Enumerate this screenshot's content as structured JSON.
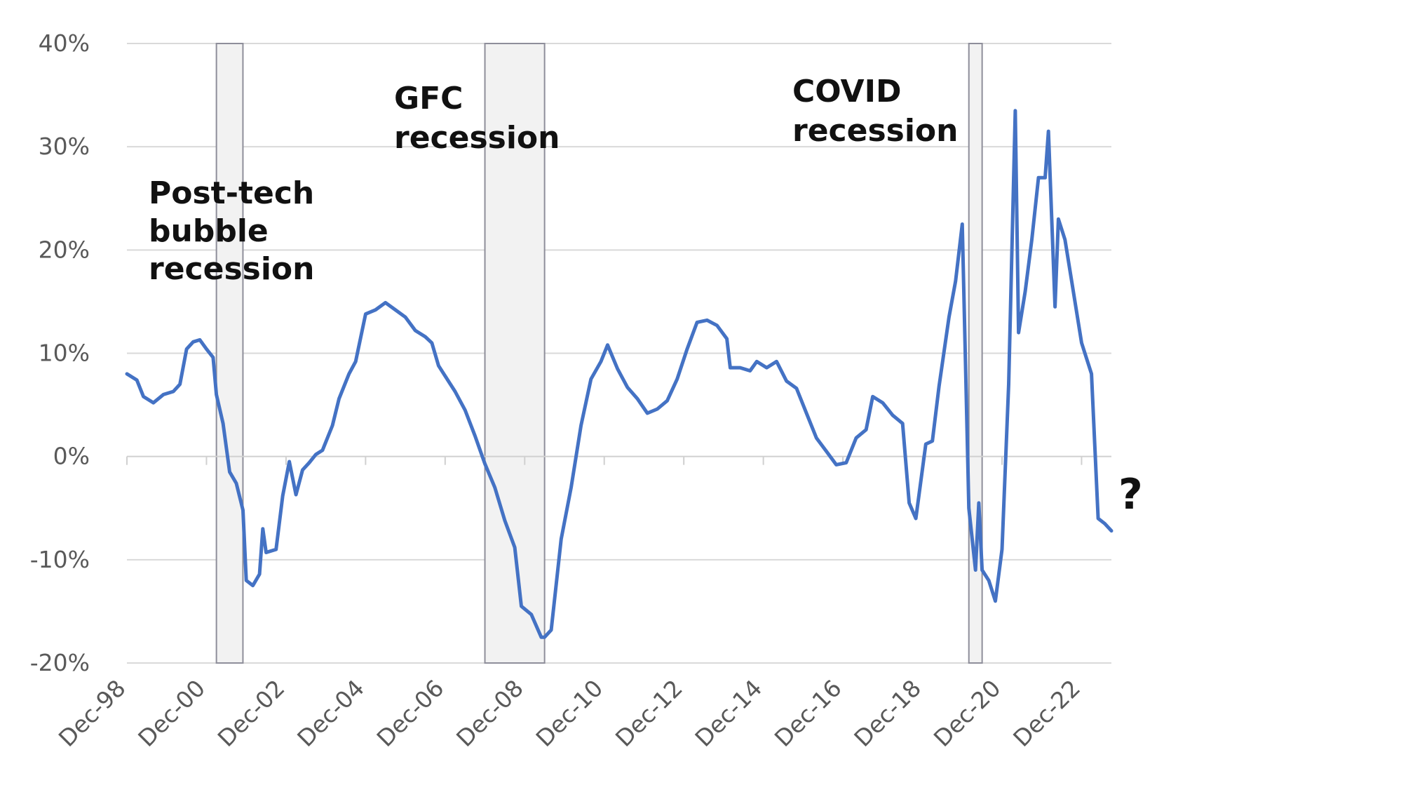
{
  "chart_data": {
    "type": "line",
    "title": "",
    "xlabel": "",
    "ylabel": "",
    "ylim": [
      -20,
      40
    ],
    "y_ticks": [
      40,
      30,
      20,
      10,
      0,
      -10,
      -20
    ],
    "y_tick_labels": [
      "40%",
      "30%",
      "20%",
      "10%",
      "0%",
      "-10%",
      "-20%"
    ],
    "x_range": [
      "1998-12",
      "2023-09"
    ],
    "x_ticks": [
      "1998-12",
      "2000-12",
      "2002-12",
      "2004-12",
      "2006-12",
      "2008-12",
      "2010-12",
      "2012-12",
      "2014-12",
      "2016-12",
      "2018-12",
      "2020-12",
      "2022-12"
    ],
    "x_tick_labels": [
      "Dec-98",
      "Dec-00",
      "Dec-02",
      "Dec-04",
      "Dec-06",
      "Dec-08",
      "Dec-10",
      "Dec-12",
      "Dec-14",
      "Dec-16",
      "Dec-18",
      "Dec-20",
      "Dec-22"
    ],
    "grid": true,
    "legend": "none",
    "line_color": "#4472C4",
    "shade_color": "#F2F2F2",
    "recessions": [
      {
        "start": "2001-03",
        "end": "2001-11",
        "label_lines": [
          "Post-tech",
          "bubble",
          "recession"
        ]
      },
      {
        "start": "2007-12",
        "end": "2009-06",
        "label_lines": [
          "GFC",
          "recession"
        ]
      },
      {
        "start": "2020-02",
        "end": "2020-06",
        "label_lines": [
          "COVID",
          "recession"
        ]
      }
    ],
    "end_annotation": "?",
    "series": [
      {
        "points": [
          [
            "1998-12",
            8.0
          ],
          [
            "1999-03",
            7.4
          ],
          [
            "1999-05",
            5.8
          ],
          [
            "1999-08",
            5.2
          ],
          [
            "1999-11",
            6.0
          ],
          [
            "2000-02",
            6.3
          ],
          [
            "2000-04",
            7.0
          ],
          [
            "2000-06",
            10.4
          ],
          [
            "2000-08",
            11.1
          ],
          [
            "2000-10",
            11.3
          ],
          [
            "2000-12",
            10.4
          ],
          [
            "2001-02",
            9.6
          ],
          [
            "2001-03",
            6.0
          ],
          [
            "2001-05",
            3.2
          ],
          [
            "2001-07",
            -1.5
          ],
          [
            "2001-09",
            -2.6
          ],
          [
            "2001-11",
            -5.2
          ],
          [
            "2001-12",
            -12.0
          ],
          [
            "2002-02",
            -12.5
          ],
          [
            "2002-04",
            -11.4
          ],
          [
            "2002-05",
            -7.0
          ],
          [
            "2002-06",
            -9.3
          ],
          [
            "2002-09",
            -9.0
          ],
          [
            "2002-11",
            -3.8
          ],
          [
            "2003-01",
            -0.5
          ],
          [
            "2003-03",
            -3.7
          ],
          [
            "2003-05",
            -1.3
          ],
          [
            "2003-07",
            -0.6
          ],
          [
            "2003-09",
            0.2
          ],
          [
            "2003-11",
            0.6
          ],
          [
            "2004-02",
            3.0
          ],
          [
            "2004-04",
            5.6
          ],
          [
            "2004-07",
            8.0
          ],
          [
            "2004-09",
            9.2
          ],
          [
            "2004-12",
            13.8
          ],
          [
            "2005-03",
            14.2
          ],
          [
            "2005-06",
            14.9
          ],
          [
            "2005-09",
            14.2
          ],
          [
            "2005-12",
            13.5
          ],
          [
            "2006-03",
            12.2
          ],
          [
            "2006-06",
            11.6
          ],
          [
            "2006-08",
            11.0
          ],
          [
            "2006-10",
            8.8
          ],
          [
            "2006-12",
            7.8
          ],
          [
            "2007-03",
            6.3
          ],
          [
            "2007-06",
            4.5
          ],
          [
            "2007-09",
            2.0
          ],
          [
            "2007-12",
            -0.7
          ],
          [
            "2008-03",
            -3.0
          ],
          [
            "2008-06",
            -6.2
          ],
          [
            "2008-09",
            -8.8
          ],
          [
            "2008-11",
            -14.5
          ],
          [
            "2009-02",
            -15.3
          ],
          [
            "2009-05",
            -17.5
          ],
          [
            "2009-06",
            -17.5
          ],
          [
            "2009-08",
            -16.8
          ],
          [
            "2009-11",
            -8.0
          ],
          [
            "2010-02",
            -3.0
          ],
          [
            "2010-05",
            3.0
          ],
          [
            "2010-08",
            7.5
          ],
          [
            "2010-11",
            9.2
          ],
          [
            "2011-01",
            10.8
          ],
          [
            "2011-04",
            8.5
          ],
          [
            "2011-07",
            6.7
          ],
          [
            "2011-10",
            5.6
          ],
          [
            "2012-01",
            4.2
          ],
          [
            "2012-04",
            4.6
          ],
          [
            "2012-07",
            5.4
          ],
          [
            "2012-10",
            7.5
          ],
          [
            "2013-01",
            10.4
          ],
          [
            "2013-04",
            13.0
          ],
          [
            "2013-07",
            13.2
          ],
          [
            "2013-10",
            12.7
          ],
          [
            "2014-01",
            11.4
          ],
          [
            "2014-02",
            8.6
          ],
          [
            "2014-05",
            8.6
          ],
          [
            "2014-08",
            8.3
          ],
          [
            "2014-10",
            9.2
          ],
          [
            "2015-01",
            8.6
          ],
          [
            "2015-04",
            9.2
          ],
          [
            "2015-07",
            7.3
          ],
          [
            "2015-10",
            6.6
          ],
          [
            "2016-01",
            4.2
          ],
          [
            "2016-04",
            1.8
          ],
          [
            "2016-07",
            0.5
          ],
          [
            "2016-10",
            -0.8
          ],
          [
            "2017-01",
            -0.6
          ],
          [
            "2017-04",
            1.8
          ],
          [
            "2017-07",
            2.6
          ],
          [
            "2017-09",
            5.8
          ],
          [
            "2017-12",
            5.2
          ],
          [
            "2018-03",
            4.0
          ],
          [
            "2018-06",
            3.2
          ],
          [
            "2018-08",
            -4.5
          ],
          [
            "2018-10",
            -6.0
          ],
          [
            "2019-01",
            1.2
          ],
          [
            "2019-03",
            1.5
          ],
          [
            "2019-05",
            6.8
          ],
          [
            "2019-08",
            13.5
          ],
          [
            "2019-10",
            17.0
          ],
          [
            "2019-12",
            22.5
          ],
          [
            "2020-02",
            -5.0
          ],
          [
            "2020-04",
            -11.0
          ],
          [
            "2020-05",
            -4.5
          ],
          [
            "2020-06",
            -11.0
          ],
          [
            "2020-08",
            -12.0
          ],
          [
            "2020-10",
            -14.0
          ],
          [
            "2020-12",
            -9.0
          ],
          [
            "2021-02",
            7.0
          ],
          [
            "2021-04",
            33.5
          ],
          [
            "2021-05",
            12.0
          ],
          [
            "2021-07",
            16.0
          ],
          [
            "2021-09",
            21.0
          ],
          [
            "2021-11",
            27.0
          ],
          [
            "2022-01",
            27.0
          ],
          [
            "2022-02",
            31.5
          ],
          [
            "2022-04",
            14.5
          ],
          [
            "2022-05",
            23.0
          ],
          [
            "2022-07",
            21.0
          ],
          [
            "2022-09",
            17.0
          ],
          [
            "2022-12",
            11.0
          ],
          [
            "2023-03",
            8.0
          ],
          [
            "2023-05",
            -6.0
          ],
          [
            "2023-07",
            -6.5
          ],
          [
            "2023-09",
            -7.2
          ]
        ]
      }
    ]
  }
}
